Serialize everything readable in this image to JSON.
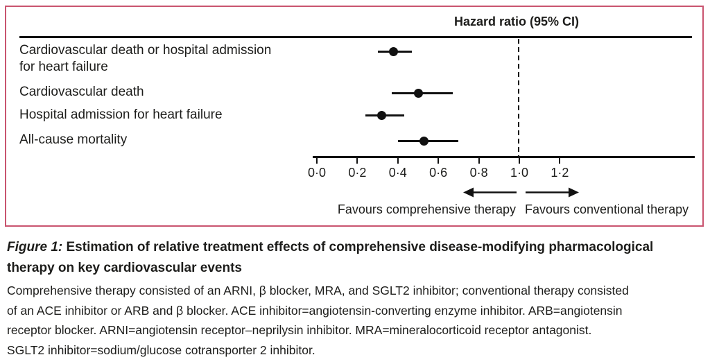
{
  "chart_data": {
    "type": "forest",
    "title": "Hazard ratio (95% CI)",
    "axis_title": "Hazard ratio (95% CI)",
    "rows": [
      {
        "label": "Cardiovascular death or hospital admission for heart failure",
        "label_lines": [
          "Cardiovascular death or hospital admission",
          "for heart failure"
        ],
        "hr": 0.38,
        "ci_low": 0.3,
        "ci_high": 0.47
      },
      {
        "label": "Cardiovascular death",
        "label_lines": [
          "Cardiovascular death"
        ],
        "hr": 0.5,
        "ci_low": 0.37,
        "ci_high": 0.67
      },
      {
        "label": "Hospital admission for heart failure",
        "label_lines": [
          "Hospital admission for heart failure"
        ],
        "hr": 0.32,
        "ci_low": 0.24,
        "ci_high": 0.43
      },
      {
        "label": "All-cause mortality",
        "label_lines": [
          "All-cause mortality"
        ],
        "hr": 0.53,
        "ci_low": 0.4,
        "ci_high": 0.7
      }
    ],
    "x_axis": {
      "tick_labels": [
        "0·0",
        "0·2",
        "0·4",
        "0·6",
        "0·8",
        "1·0",
        "1·2"
      ],
      "tick_values": [
        0,
        0.2,
        0.4,
        0.6,
        0.8,
        1.0,
        1.2
      ],
      "range": [
        0,
        1.87
      ]
    },
    "reference_line_value": 1.0,
    "legend_position": "none",
    "grid": false,
    "direction_labels": {
      "left": "Favours comprehensive therapy",
      "right": "Favours conventional therapy"
    }
  },
  "caption": {
    "figure_label": "Figure 1:",
    "heading_line1_rest": " Estimation of relative treatment effects of comprehensive disease-modifying pharmacological",
    "heading_line2": "therapy on key cardiovascular events",
    "body_lines": [
      "Comprehensive therapy consisted of an ARNI, β blocker, MRA, and SGLT2 inhibitor; conventional therapy consisted",
      "of an ACE inhibitor or ARB and β blocker. ACE inhibitor=angiotensin-converting enzyme inhibitor. ARB=angiotensin",
      "receptor blocker. ARNI=angiotensin receptor–neprilysin inhibitor. MRA=mineralocorticoid receptor antagonist.",
      "SGLT2 inhibitor=sodium/glucose cotransporter 2 inhibitor."
    ]
  },
  "colors": {
    "panel_border_pink": "#c9546f",
    "ink": "#1d1d1b",
    "line_black": "#111111"
  }
}
